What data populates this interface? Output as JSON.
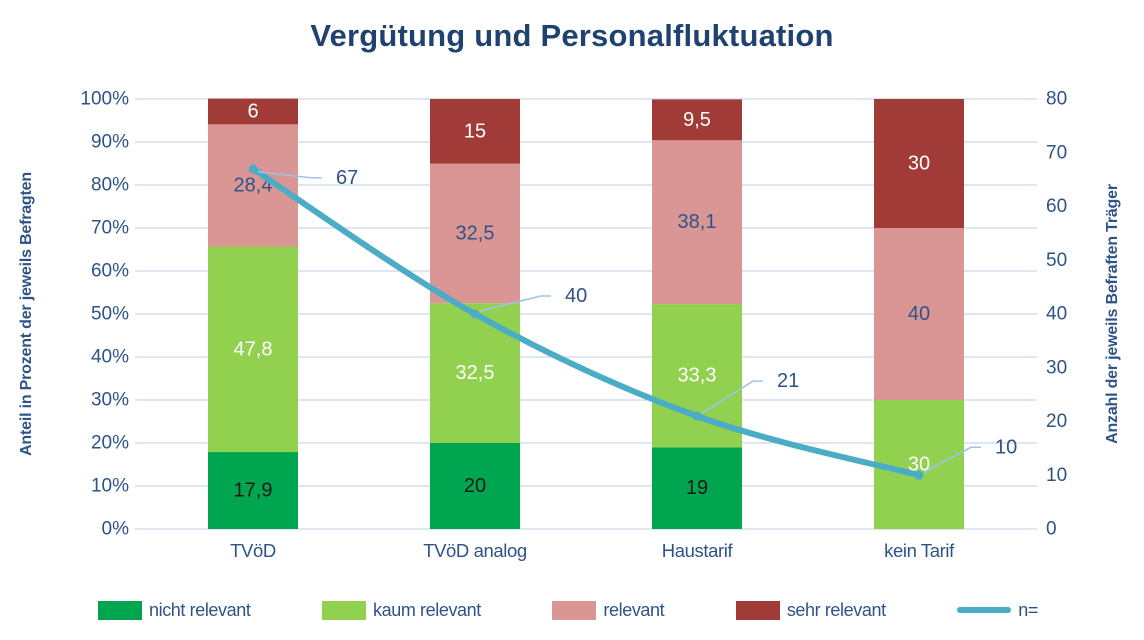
{
  "title": "Vergütung und Personalfluktuation",
  "colors": {
    "title_text": "#1F4271",
    "axis_text": "#2E5388",
    "gridline": "#C9D7E8",
    "leader_line": "#9DC3E6",
    "nicht_relevant": "#00A64F",
    "kaum_relevant": "#92D050",
    "relevant": "#D99694",
    "sehr_relevant": "#A13B38",
    "line_n": "#4BACC6"
  },
  "chart_data": {
    "type": "bar",
    "subtype": "stacked-column-with-line",
    "title": "Vergütung und Personalfluktuation",
    "categories": [
      "TVöD",
      "TVöD analog",
      "Haustarif",
      "kein Tarif"
    ],
    "series": [
      {
        "name": "nicht relevant",
        "color": "#00A64F",
        "label_color": "#1a1a1a",
        "values": [
          17.9,
          20,
          19,
          0
        ],
        "labels": [
          "17,9",
          "20",
          "19",
          ""
        ]
      },
      {
        "name": "kaum relevant",
        "color": "#92D050",
        "label_color": "#ffffff",
        "values": [
          47.8,
          32.5,
          33.3,
          30
        ],
        "labels": [
          "47,8",
          "32,5",
          "33,3",
          "30"
        ]
      },
      {
        "name": "relevant",
        "color": "#D99694",
        "label_color": "#2E5388",
        "values": [
          28.4,
          32.5,
          38.1,
          40
        ],
        "labels": [
          "28,4",
          "32,5",
          "38,1",
          "40"
        ]
      },
      {
        "name": "sehr relevant",
        "color": "#A13B38",
        "label_color": "#ffffff",
        "values": [
          6,
          15,
          9.5,
          30
        ],
        "labels": [
          "6",
          "15",
          "9,5",
          "30"
        ]
      }
    ],
    "line_series": {
      "name": "n=",
      "color": "#4BACC6",
      "values": [
        67,
        40,
        21,
        10
      ],
      "labels": [
        "67",
        "40",
        "21",
        "10"
      ]
    },
    "left_axis": {
      "title": "Anteil in Prozent der jeweils Befragten",
      "min": 0,
      "max": 100,
      "ticks": [
        "0%",
        "10%",
        "20%",
        "30%",
        "40%",
        "50%",
        "60%",
        "70%",
        "80%",
        "90%",
        "100%"
      ]
    },
    "right_axis": {
      "title": "Anzahl der jeweils Befraften Träger",
      "min": 0,
      "max": 80,
      "ticks": [
        "0",
        "10",
        "20",
        "30",
        "40",
        "50",
        "60",
        "70",
        "80"
      ]
    },
    "grid": true,
    "legend_position": "bottom"
  },
  "legend": {
    "items": [
      {
        "label": "nicht relevant",
        "color": "#00A64F",
        "type": "swatch"
      },
      {
        "label": "kaum relevant",
        "color": "#92D050",
        "type": "swatch"
      },
      {
        "label": "relevant",
        "color": "#D99694",
        "type": "swatch"
      },
      {
        "label": "sehr relevant",
        "color": "#A13B38",
        "type": "swatch"
      },
      {
        "label": "n=",
        "color": "#4BACC6",
        "type": "line"
      }
    ]
  }
}
